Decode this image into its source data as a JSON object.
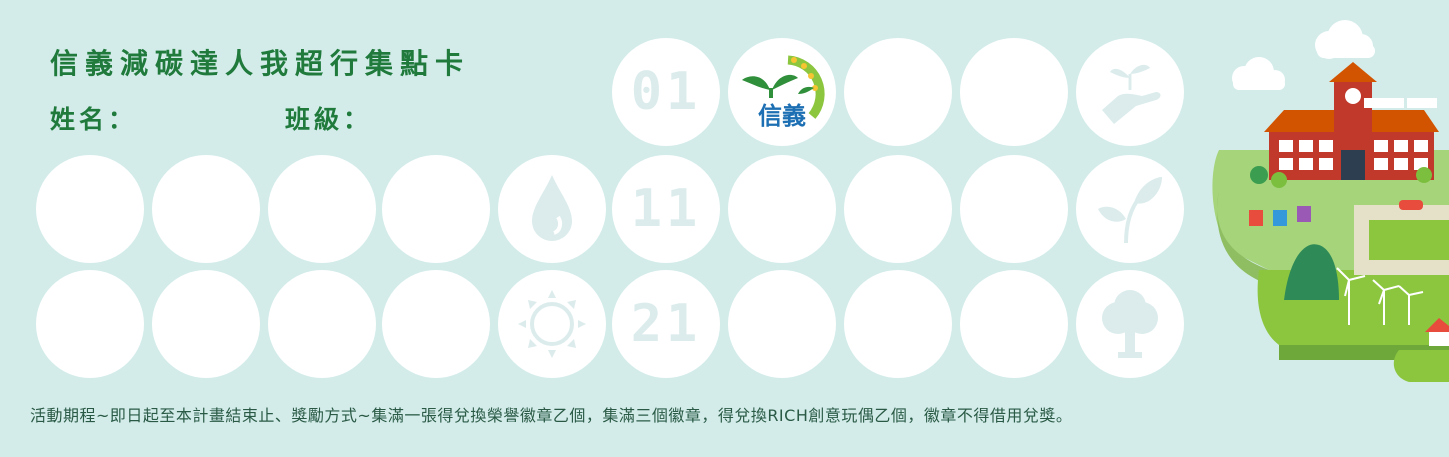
{
  "title": "信義減碳達人我超行集點卡",
  "fields": {
    "name_label": "姓名：",
    "class_label": "班級："
  },
  "stamps": {
    "row1_first_number": "01",
    "row2_marker": "11",
    "row3_marker": "21",
    "logo_text": "信義"
  },
  "icons": {
    "hand_plant": "hand-plant-icon",
    "water_drop": "water-drop-icon",
    "leaves": "leaves-icon",
    "sun": "sun-icon",
    "tree": "tree-icon"
  },
  "colors": {
    "background": "#d3ecea",
    "title": "#1f7a3c",
    "stamp": "#ffffff",
    "stamp_icon": "#dcecec"
  },
  "footer": "活動期程~即日起至本計畫結束止、獎勵方式~集滿一張得兌換榮譽徽章乙個，集滿三個徽章，得兌換RICH創意玩偶乙個，徽章不得借用兌獎。"
}
